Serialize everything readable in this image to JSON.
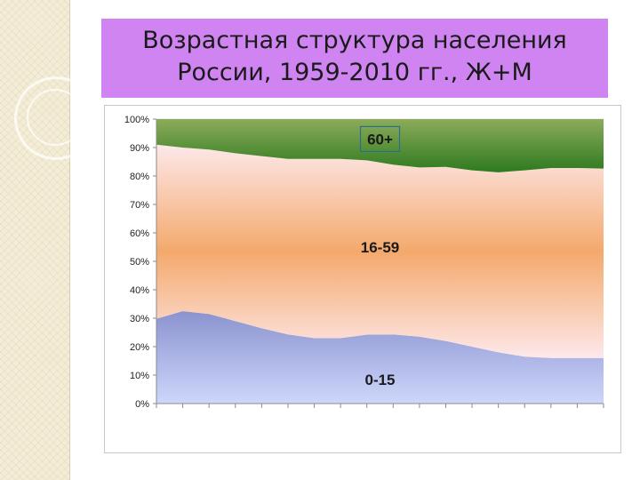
{
  "title": {
    "line1": "Возрастная структура населения",
    "line2": "России, 1959-2010 гг., Ж+М"
  },
  "chart_data": {
    "type": "area",
    "stacked": true,
    "ylim": [
      0,
      100
    ],
    "y_ticks": [
      "0%",
      "10%",
      "20%",
      "30%",
      "40%",
      "50%",
      "60%",
      "70%",
      "80%",
      "90%",
      "100%"
    ],
    "x_count": 18,
    "series": [
      {
        "label": "0-15",
        "values": [
          29.8,
          32.5,
          31.5,
          29,
          26.5,
          24.3,
          23,
          23,
          24.2,
          24.3,
          23.5,
          22,
          20,
          18,
          16.5,
          16,
          16,
          16
        ]
      },
      {
        "label": "16-59",
        "values": [
          61.2,
          57.5,
          57.8,
          59,
          60.5,
          61.7,
          63,
          63,
          61.3,
          59.7,
          59.5,
          61.2,
          62,
          63.3,
          65.5,
          66.8,
          66.8,
          66.6
        ]
      },
      {
        "label": "60+",
        "values": [
          9,
          10,
          10.7,
          12,
          13,
          14,
          14,
          14,
          14.5,
          16,
          17,
          16.8,
          18,
          18.7,
          18,
          17.2,
          17.2,
          17.4
        ]
      }
    ],
    "colors": {
      "young_top": "#8b93cf",
      "young_bottom": "#cdd7fb",
      "work_edge": "#fde8ea",
      "work_mid": "#f4a96c",
      "old_top": "#8cab5b",
      "old_bottom": "#2e7a1f",
      "label_box": "#2b6f8f"
    }
  }
}
